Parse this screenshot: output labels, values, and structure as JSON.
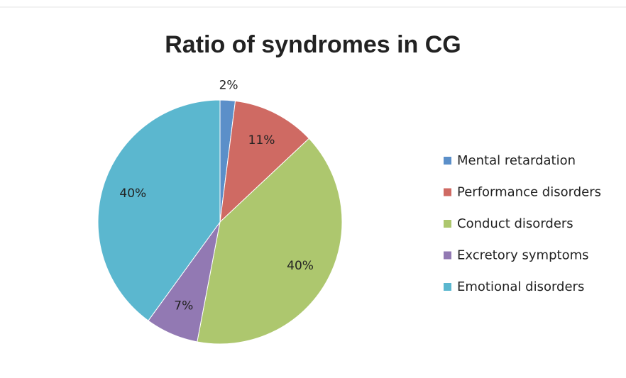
{
  "chart_data": {
    "type": "pie",
    "title": "Ratio of  syndromes in CG",
    "categories": [
      "Mental retardation",
      "Performance disorders",
      "Conduct disorders",
      "Excretory symptoms",
      "Emotional disorders"
    ],
    "values": [
      2,
      11,
      40,
      7,
      40
    ],
    "value_labels": [
      "2%",
      "11%",
      "40%",
      "7%",
      "40%"
    ],
    "colors": [
      "#5b8fc9",
      "#cf6a63",
      "#adc76e",
      "#9279b3",
      "#5bb7cf"
    ],
    "legend": "right"
  }
}
